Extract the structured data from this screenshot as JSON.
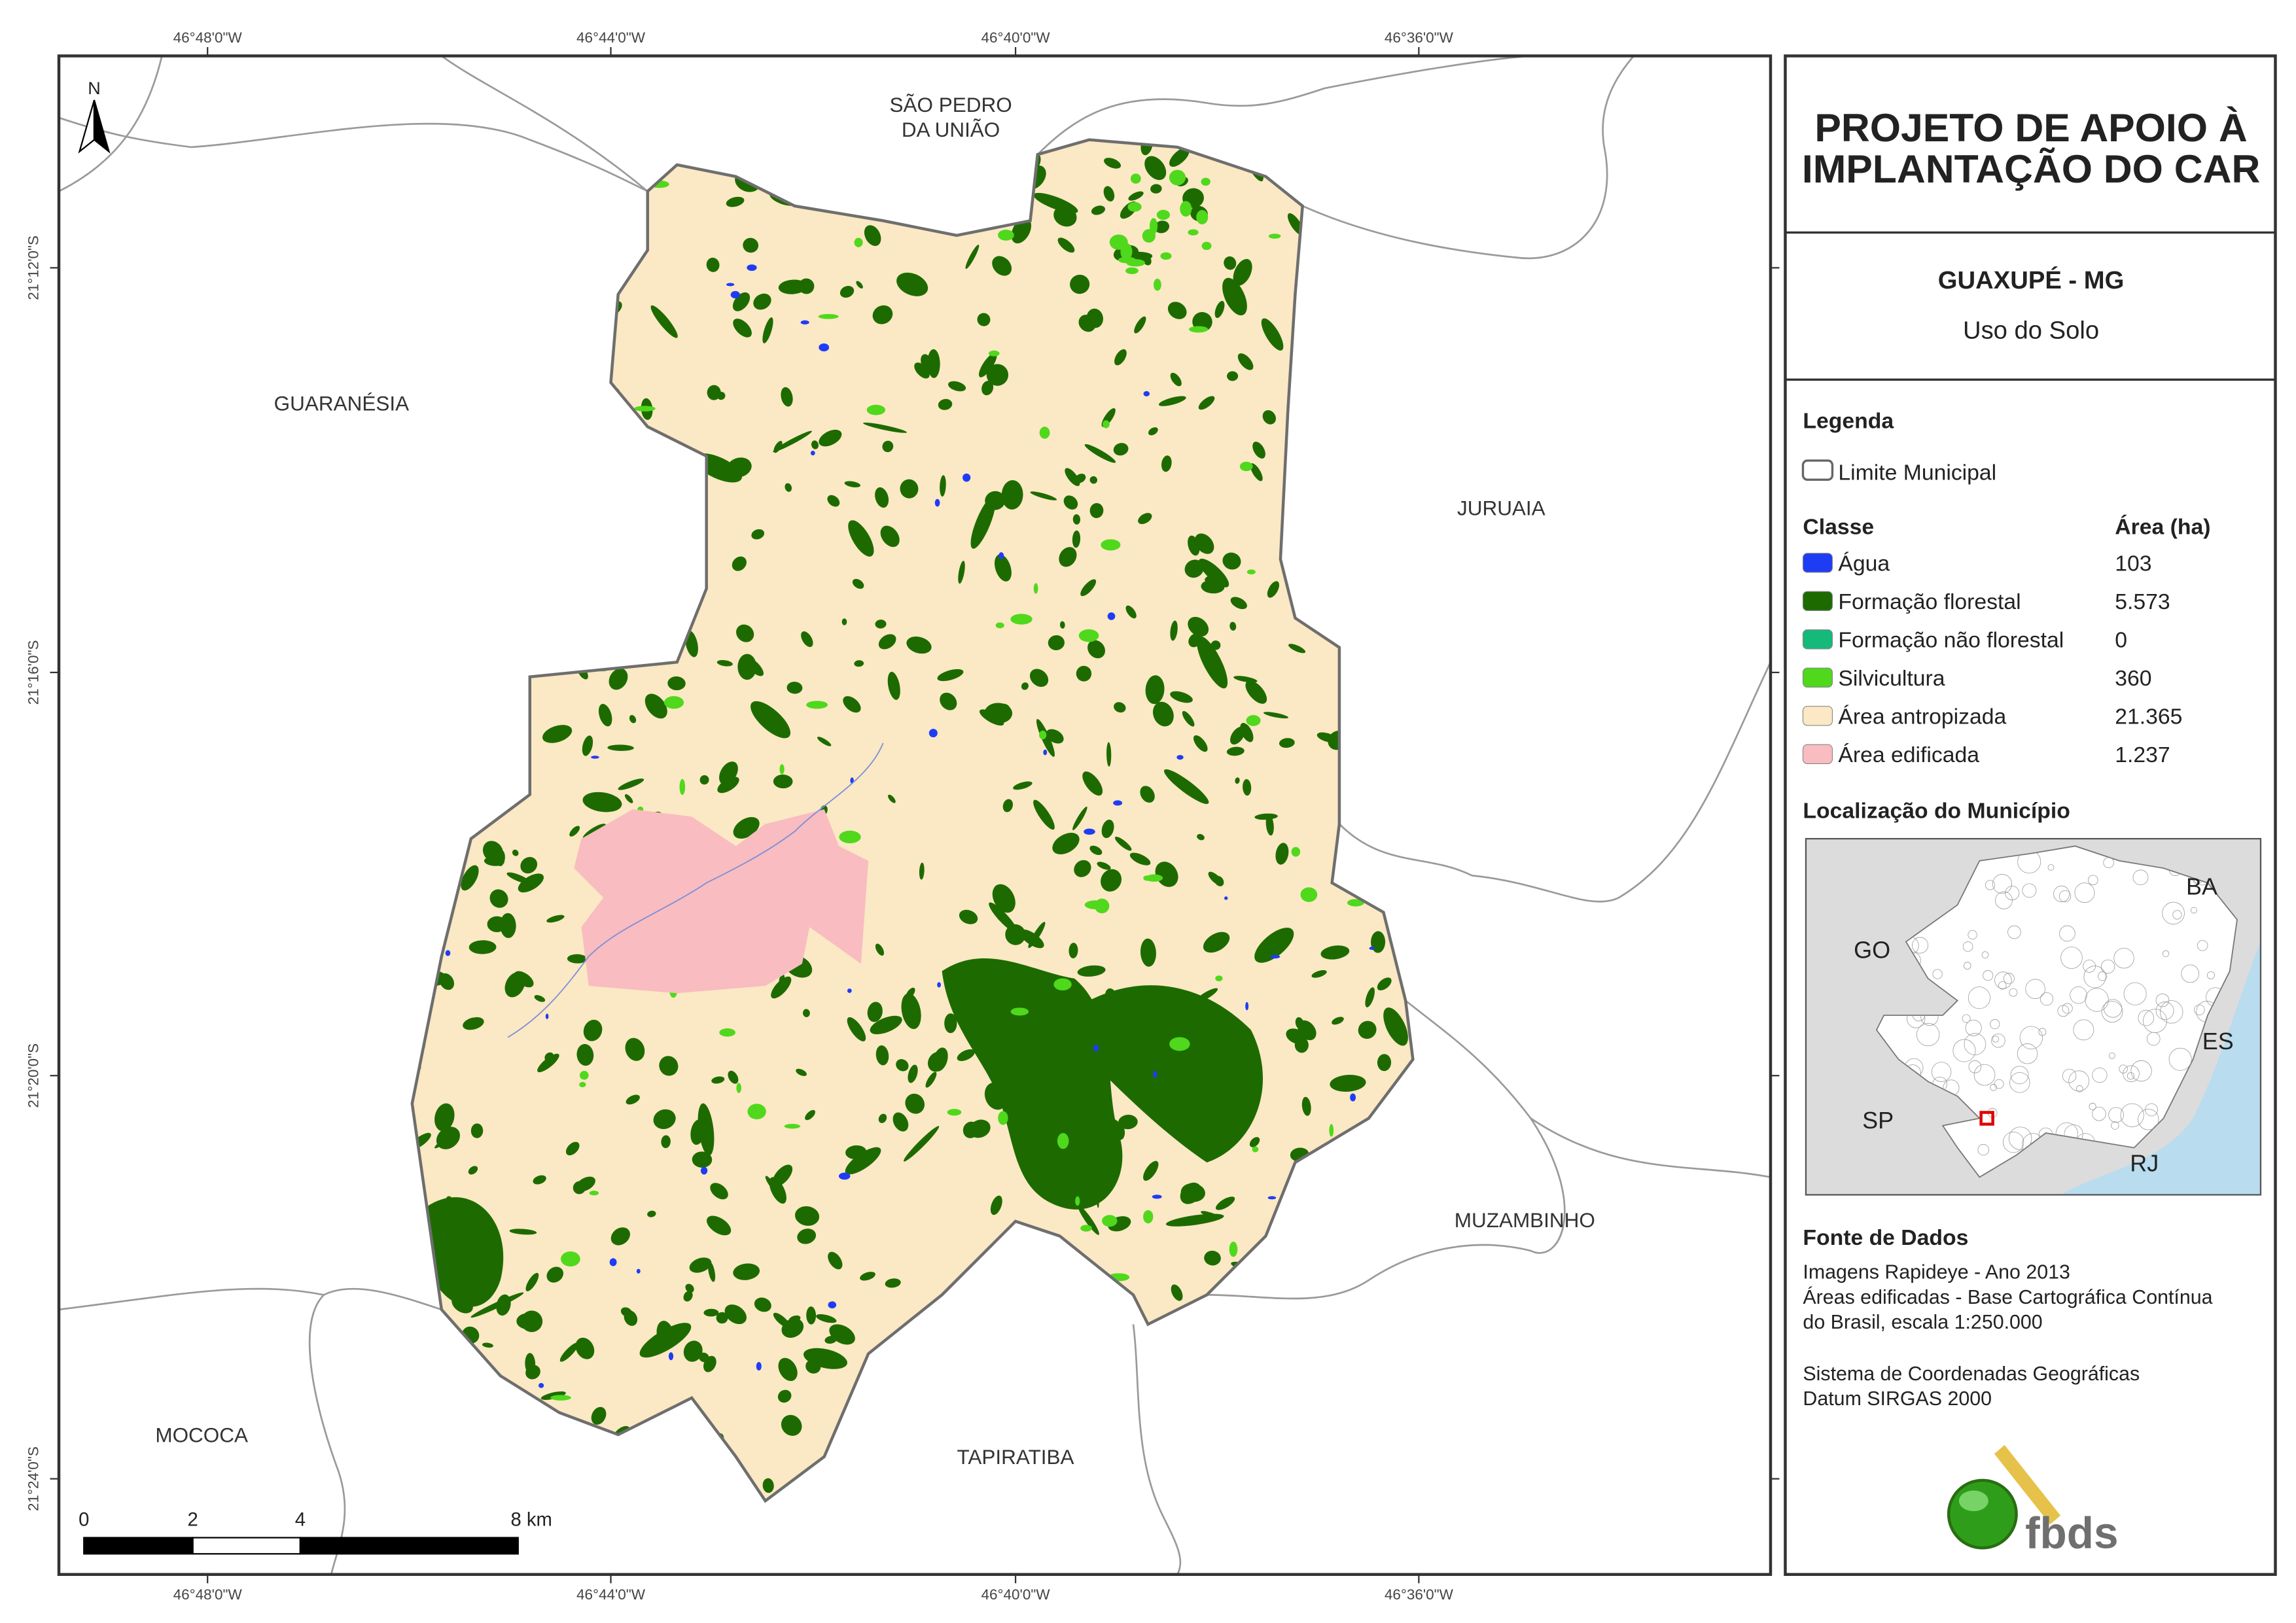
{
  "header": {
    "title_lines": [
      "PROJETO DE APOIO À",
      "IMPLANTAÇÃO DO CAR"
    ],
    "municipality": "GUAXUPÉ - MG",
    "subtitle": "Uso do Solo"
  },
  "legend": {
    "title": "Legenda",
    "boundary": "Limite Municipal",
    "class_header": "Classe",
    "area_header": "Área (ha)",
    "classes": [
      {
        "name": "Água",
        "color": "#1f3cf5",
        "area": "103"
      },
      {
        "name": "Formação florestal",
        "color": "#1d6b00",
        "area": "5.573"
      },
      {
        "name": "Formação não florestal",
        "color": "#15b97a",
        "area": "0"
      },
      {
        "name": "Silvicultura",
        "color": "#4fd81c",
        "area": "360"
      },
      {
        "name": "Área antropizada",
        "color": "#fbe8c4",
        "area": "21.365"
      },
      {
        "name": "Área edificada",
        "color": "#f9bcc0",
        "area": "1.237"
      }
    ]
  },
  "location": {
    "title": "Localização do Município",
    "states": [
      "GO",
      "BA",
      "ES",
      "SP",
      "RJ"
    ]
  },
  "sources": {
    "title": "Fonte de Dados",
    "lines": [
      "Imagens Rapideye - Ano 2013",
      "Áreas edificadas - Base Cartográfica Contínua",
      "do Brasil, escala 1:250.000",
      "Sistema de Coordenadas Geográficas",
      "Datum SIRGAS 2000"
    ]
  },
  "logo": "fbds",
  "map": {
    "north": "N",
    "places": [
      [
        "SÃO PEDRO",
        "DA UNIÃO"
      ],
      [
        "GUARANÉSIA"
      ],
      [
        "JURUAIA"
      ],
      [
        "MUZAMBINHO"
      ],
      [
        "MOCOCA"
      ],
      [
        "TAPIRATIBA"
      ]
    ],
    "lon_labels": [
      "46°48'0\"W",
      "46°44'0\"W",
      "46°40'0\"W",
      "46°36'0\"W"
    ],
    "lat_labels": [
      "21°12'0\"S",
      "21°16'0\"S",
      "21°20'0\"S",
      "21°24'0\"S"
    ],
    "scale_labels": [
      "0",
      "2",
      "4",
      "8 km"
    ]
  }
}
